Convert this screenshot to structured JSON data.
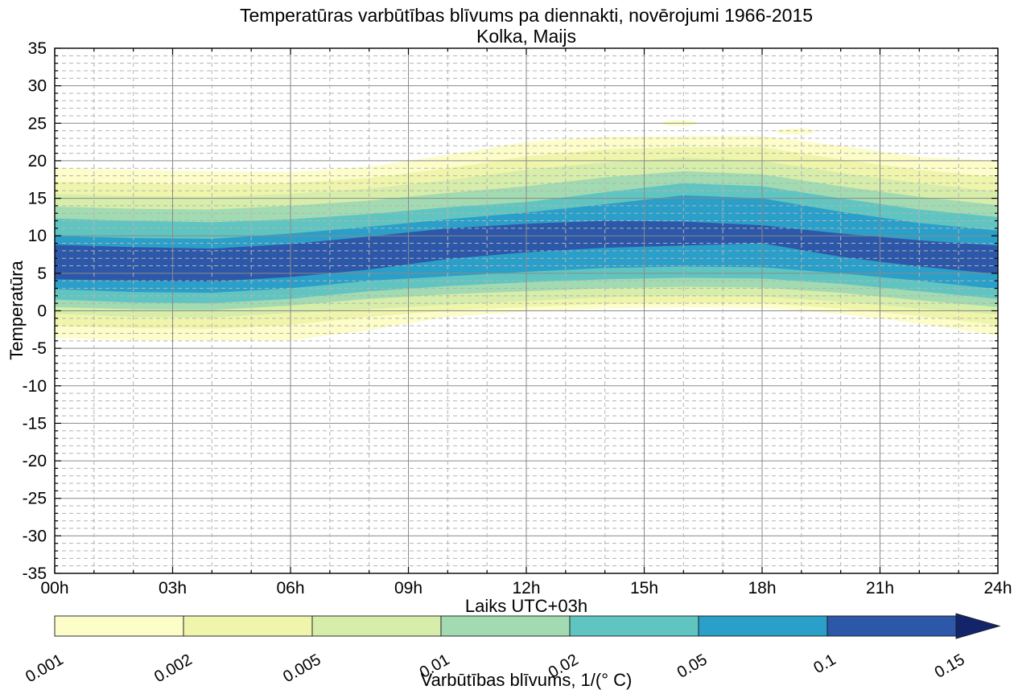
{
  "title": {
    "line1": "Temperatūras varbūtības blīvums pa diennakti, novērojumi 1966-2015",
    "line2": "Kolka, Maijs"
  },
  "axes": {
    "x_label": "Laiks UTC+03h",
    "y_label": "Temperatūra",
    "x_ticks": [
      {
        "hour": 0,
        "label": "00h"
      },
      {
        "hour": 3,
        "label": "03h"
      },
      {
        "hour": 6,
        "label": "06h"
      },
      {
        "hour": 9,
        "label": "09h"
      },
      {
        "hour": 12,
        "label": "12h"
      },
      {
        "hour": 15,
        "label": "15h"
      },
      {
        "hour": 18,
        "label": "18h"
      },
      {
        "hour": 21,
        "label": "21h"
      },
      {
        "hour": 24,
        "label": "24h"
      }
    ],
    "y_tick_values": [
      35,
      30,
      25,
      20,
      15,
      10,
      5,
      0,
      -5,
      -10,
      -15,
      -20,
      -25,
      -30,
      -35
    ],
    "x_range_hours": [
      0,
      24
    ],
    "y_range_degrees": [
      -35,
      35
    ],
    "x_minor_step_hours": 1,
    "y_minor_step_degrees": 1
  },
  "grid": {
    "minor_color": "#b3b3b3",
    "major_color": "#8a8a8a"
  },
  "colorbar": {
    "label": "Varbūtības blīvums, 1/(° C)",
    "tick_labels": [
      "0.001",
      "0.002",
      "0.005",
      "0.01",
      "0.02",
      "0.05",
      "0.1",
      "0.15"
    ],
    "segment_colors": [
      "#fcfdc9",
      "#eff6ab",
      "#d7edaa",
      "#a2dbb1",
      "#60c5c1",
      "#2a9fc9",
      "#2d58a9"
    ],
    "overflow_arrow_color": "#14246b"
  },
  "chart_data": {
    "type": "area",
    "description": "Filled contour plot: probability density of temperature (°C) by hour of day, May, Kolka, observations 1966-2015. Each level gives the upper and lower temperature of its contour band at each hour.",
    "x_hours": [
      0,
      2,
      4,
      6,
      8,
      10,
      12,
      14,
      16,
      18,
      20,
      22,
      24
    ],
    "levels": [
      {
        "value": 0.001,
        "color": "#fcfdc9",
        "upper": [
          19.0,
          18.8,
          18.6,
          18.5,
          19.2,
          20.8,
          22.5,
          23.2,
          23.3,
          23.3,
          22.0,
          20.5,
          20.0
        ],
        "lower": [
          -3.6,
          -3.9,
          -3.9,
          -3.9,
          -2.6,
          -0.8,
          -0.1,
          0.3,
          0.5,
          0.4,
          -0.4,
          -1.7,
          -3.3
        ]
      },
      {
        "value": 0.002,
        "color": "#eff6ab",
        "upper": [
          17.2,
          17.0,
          16.8,
          17.0,
          17.7,
          19.0,
          20.6,
          21.5,
          21.8,
          21.8,
          20.2,
          18.8,
          17.8
        ],
        "lower": [
          -2.0,
          -2.3,
          -2.4,
          -1.9,
          -0.8,
          0.0,
          0.5,
          0.9,
          1.1,
          1.0,
          0.3,
          -0.7,
          -1.9
        ]
      },
      {
        "value": 0.005,
        "color": "#d7edaa",
        "upper": [
          15.6,
          15.3,
          15.2,
          15.6,
          16.3,
          17.4,
          18.8,
          19.8,
          20.4,
          20.0,
          18.4,
          17.0,
          15.9
        ],
        "lower": [
          -0.4,
          -0.8,
          -0.9,
          -0.3,
          0.2,
          0.8,
          1.3,
          1.8,
          2.0,
          1.9,
          1.2,
          0.3,
          -0.5
        ]
      },
      {
        "value": 0.01,
        "color": "#a2dbb1",
        "upper": [
          13.9,
          13.6,
          13.5,
          14.0,
          14.7,
          15.7,
          16.6,
          17.8,
          18.6,
          18.2,
          16.6,
          15.2,
          14.1
        ],
        "lower": [
          0.5,
          0.2,
          0.1,
          0.7,
          1.6,
          2.2,
          2.6,
          3.0,
          3.2,
          3.1,
          2.4,
          1.4,
          0.5
        ]
      },
      {
        "value": 0.02,
        "color": "#60c5c1",
        "upper": [
          12.3,
          12.0,
          11.8,
          12.2,
          12.9,
          13.8,
          14.5,
          15.8,
          17.0,
          16.6,
          15.0,
          13.5,
          12.5
        ],
        "lower": [
          1.5,
          1.1,
          1.0,
          1.6,
          2.6,
          3.3,
          3.8,
          4.2,
          4.4,
          4.3,
          3.6,
          2.6,
          1.6
        ]
      },
      {
        "value": 0.05,
        "color": "#2a9fc9",
        "upper": [
          10.0,
          9.7,
          9.6,
          10.3,
          11.2,
          12.2,
          13.1,
          14.2,
          15.4,
          15.0,
          13.2,
          11.7,
          10.7
        ],
        "lower": [
          2.9,
          2.5,
          2.4,
          3.0,
          4.0,
          4.6,
          5.2,
          5.7,
          5.9,
          5.8,
          5.0,
          4.0,
          2.9
        ]
      },
      {
        "value": 0.1,
        "color": "#2d58a9",
        "upper": [
          8.8,
          8.5,
          8.3,
          8.9,
          9.9,
          11.0,
          11.6,
          12.0,
          11.9,
          11.4,
          10.3,
          9.4,
          8.7
        ],
        "lower": [
          4.2,
          4.0,
          3.9,
          4.5,
          5.5,
          6.9,
          7.8,
          8.4,
          8.7,
          9.0,
          7.2,
          5.9,
          4.9
        ]
      }
    ],
    "isolated_patches": [
      {
        "level": 0.001,
        "color": "#fcfdc9",
        "t_hour": 15.9,
        "temperature": 25.0,
        "rx_hours": 0.45,
        "ry_degrees": 0.4
      },
      {
        "level": 0.001,
        "color": "#fcfdc9",
        "t_hour": 18.85,
        "temperature": 23.9,
        "rx_hours": 0.5,
        "ry_degrees": 0.4
      }
    ]
  }
}
